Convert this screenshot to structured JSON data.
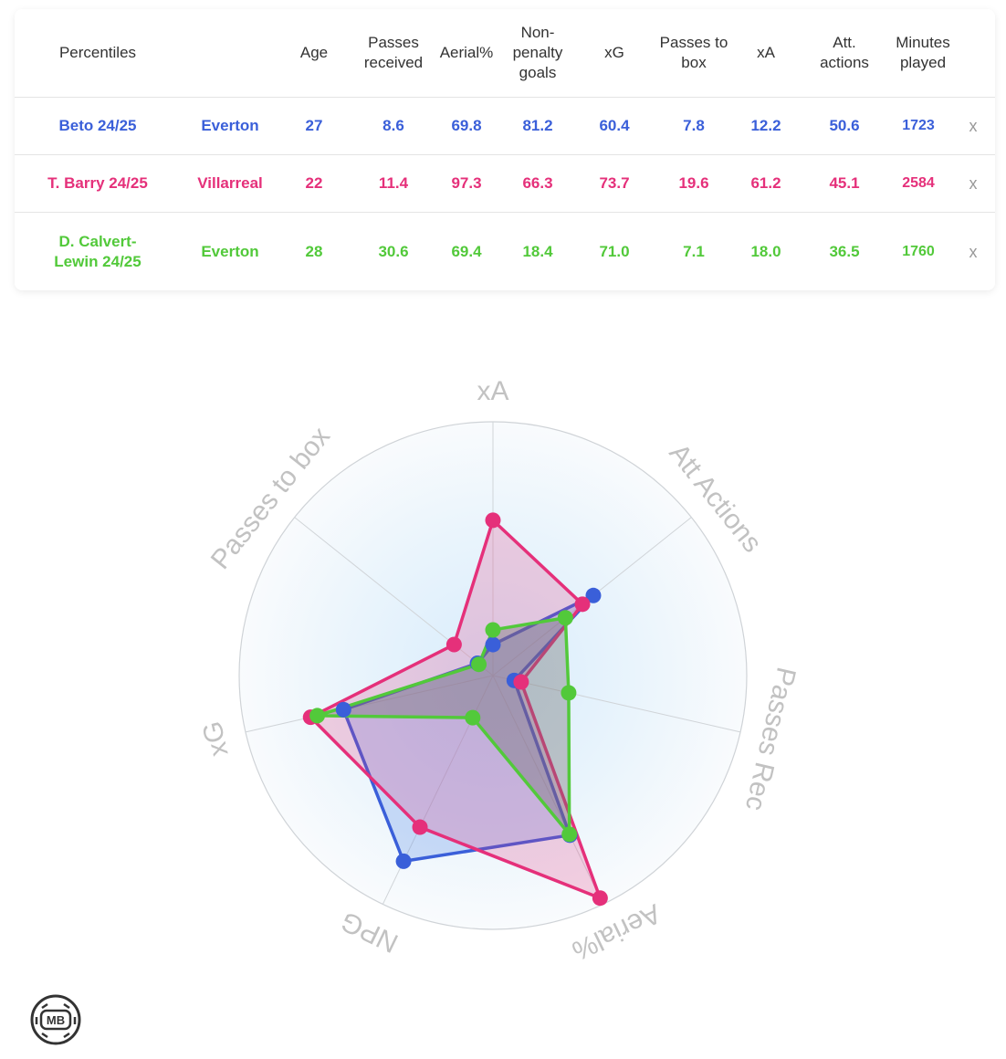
{
  "table": {
    "headers": {
      "percentiles": "Percentiles",
      "age": "Age",
      "passes_received": "Passes received",
      "aerial": "Aerial%",
      "npg": "Non-penalty goals",
      "xg": "xG",
      "passes_to_box": "Passes to box",
      "xa": "xA",
      "att_actions": "Att. actions",
      "minutes": "Minutes played"
    },
    "rows": [
      {
        "player": "Beto 24/25",
        "team": "Everton",
        "age": "27",
        "passes_received": "8.6",
        "aerial": "69.8",
        "npg": "81.2",
        "xg": "60.4",
        "passes_to_box": "7.8",
        "xa": "12.2",
        "att_actions": "50.6",
        "minutes": "1723",
        "remove": "x",
        "color": "#3a5fd9"
      },
      {
        "player": "T. Barry 24/25",
        "team": "Villarreal",
        "age": "22",
        "passes_received": "11.4",
        "aerial": "97.3",
        "npg": "66.3",
        "xg": "73.7",
        "passes_to_box": "19.6",
        "xa": "61.2",
        "att_actions": "45.1",
        "minutes": "2584",
        "remove": "x",
        "color": "#e5307a"
      },
      {
        "player": "D. Calvert-Lewin 24/25",
        "team": "Everton",
        "age": "28",
        "passes_received": "30.6",
        "aerial": "69.4",
        "npg": "18.4",
        "xg": "71.0",
        "passes_to_box": "7.1",
        "xa": "18.0",
        "att_actions": "36.5",
        "minutes": "1760",
        "remove": "x",
        "color": "#52c93a"
      }
    ]
  },
  "chart_data": {
    "type": "radar",
    "axes": [
      "xA",
      "Att Actions",
      "Passes Rec",
      "Aerial%",
      "NPG",
      "xG",
      "Passes to box"
    ],
    "range": [
      0,
      100
    ],
    "series": [
      {
        "name": "Beto 24/25",
        "color": "#3a5fd9",
        "values": [
          12.2,
          50.6,
          8.6,
          69.8,
          81.2,
          60.4,
          7.8
        ]
      },
      {
        "name": "T. Barry 24/25",
        "color": "#e5307a",
        "values": [
          61.2,
          45.1,
          11.4,
          97.3,
          66.3,
          73.7,
          19.6
        ]
      },
      {
        "name": "D. Calvert-Lewin 24/25",
        "color": "#52c93a",
        "values": [
          18.0,
          36.5,
          30.6,
          69.4,
          18.4,
          71.0,
          7.1
        ]
      }
    ]
  },
  "logo": {
    "text": "MB",
    "icon": "football-logo-icon"
  }
}
